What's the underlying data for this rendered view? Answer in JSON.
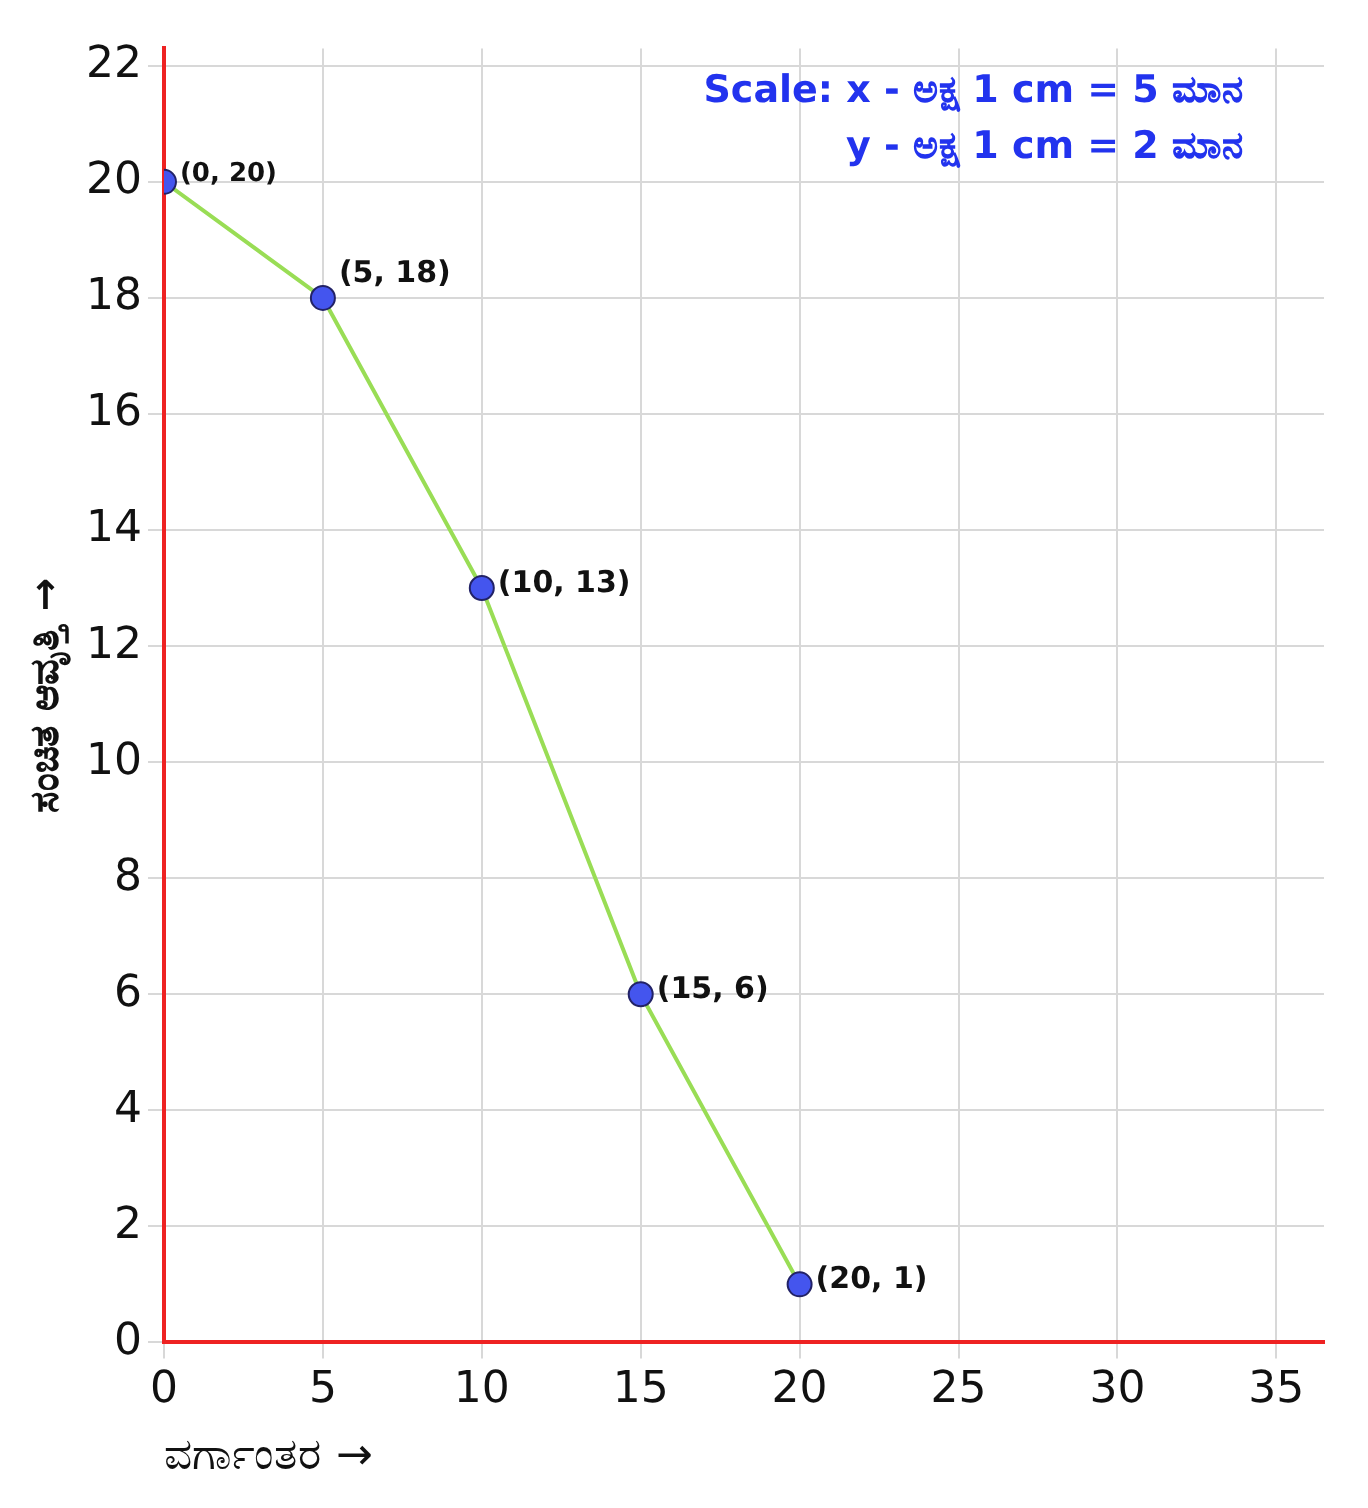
{
  "chart_data": {
    "type": "line",
    "title": "Scale: x - ಅಕ್ಷ 1 cm = 5 ಮಾನ",
    "subtitle": "y - ಅಕ್ಷ 1 cm = 2 ಮಾನ",
    "xlabel": "ವರ್ಗಾಂತರ →",
    "ylabel": "ಸಂಚಿತ ಆವೃತ್ತಿ →",
    "x": [
      0,
      5,
      10,
      15,
      20
    ],
    "series": [
      {
        "color": "#99dd55",
        "values": [
          20,
          18,
          13,
          6,
          1
        ],
        "value_labels": [
          "(0, 20)",
          "(5, 18)",
          "(10, 13)",
          "(15, 6)",
          "(20, 1)"
        ]
      }
    ],
    "xlim": [
      0,
      36.5
    ],
    "xticks": [
      0,
      5,
      10,
      15,
      20,
      25,
      30,
      35
    ],
    "ylim": [
      0,
      22.3
    ],
    "yticks": [
      0,
      2,
      4,
      6,
      8,
      10,
      12,
      14,
      16,
      18,
      20,
      22
    ],
    "grid": true,
    "marker": "circle",
    "line_style": "solid",
    "legend": false
  }
}
